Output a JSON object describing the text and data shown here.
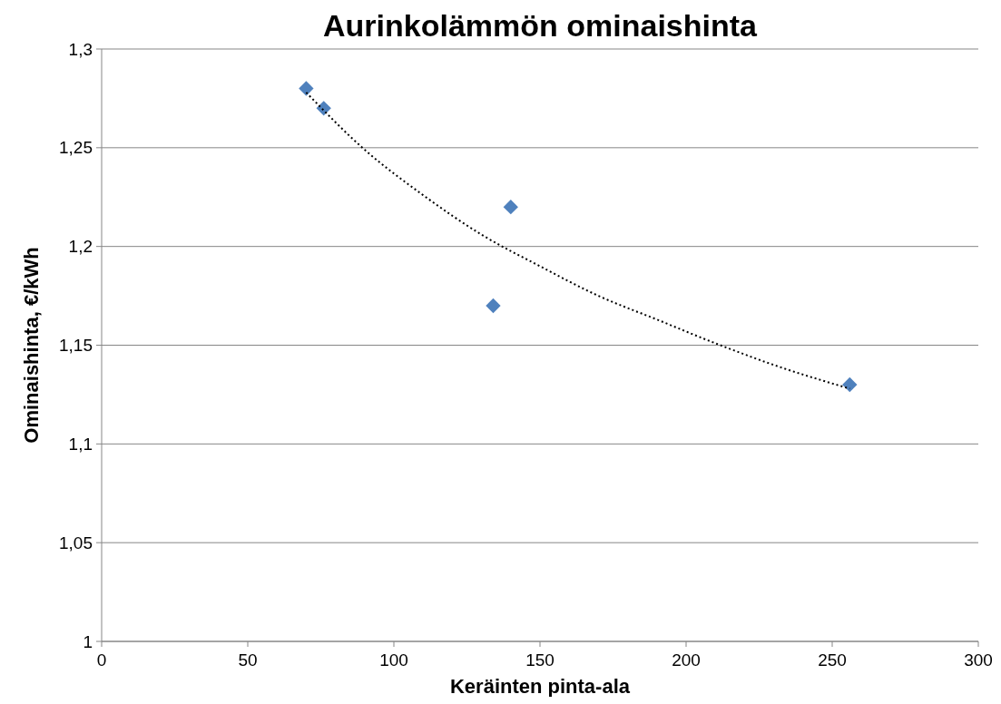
{
  "chart_data": {
    "type": "scatter",
    "title": "Aurinkolämmön ominaishinta",
    "xlabel": "Keräinten pinta-ala",
    "ylabel": "Ominaishinta, €/kWh",
    "series": [
      {
        "color": "#4f81bd",
        "marker": "diamond",
        "x": [
          70,
          76,
          140,
          134,
          256
        ],
        "values": [
          1.28,
          1.27,
          1.22,
          1.17,
          1.13
        ]
      },
      {
        "type": "line",
        "color": "#000000",
        "line_style": "dotted",
        "marker": "none",
        "x": [
          70,
          90,
          110,
          130,
          150,
          170,
          190,
          210,
          230,
          256
        ],
        "values": [
          1.278,
          1.249,
          1.226,
          1.206,
          1.19,
          1.175,
          1.163,
          1.151,
          1.14,
          1.128
        ]
      }
    ],
    "xlim": [
      0,
      300
    ],
    "xticks": [
      0,
      50,
      100,
      150,
      200,
      250,
      300
    ],
    "ylim": [
      1,
      1.3
    ],
    "yticks": [
      {
        "value": 1,
        "label": "1"
      },
      {
        "value": 1.05,
        "label": "1,05"
      },
      {
        "value": 1.1,
        "label": "1,1"
      },
      {
        "value": 1.15,
        "label": "1,15"
      },
      {
        "value": 1.2,
        "label": "1,2"
      },
      {
        "value": 1.25,
        "label": "1,25"
      },
      {
        "value": 1.3,
        "label": "1,3"
      }
    ],
    "grid": "y"
  }
}
